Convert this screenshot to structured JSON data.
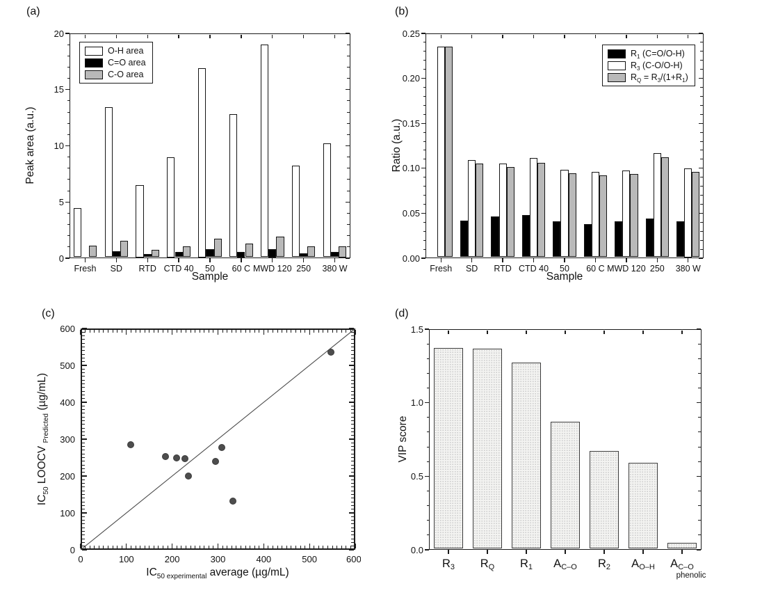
{
  "page": {
    "background": "#ffffff"
  },
  "colors": {
    "axis": "#1a1a1a",
    "bar_white": "#ffffff",
    "bar_black": "#000000",
    "bar_gray": "#b9b9b9",
    "scatter_dot": "#4d4d4d",
    "pattern_bar_fill": "#f3f3f1"
  },
  "chart_data": [
    {
      "id": "a",
      "type": "bar",
      "panel_label": "(a)",
      "xlabel": "Sample",
      "ylabel": "Peak area (a.u.)",
      "ylim": [
        0,
        20
      ],
      "yticks": {
        "values": [
          0,
          5,
          10,
          15,
          20
        ],
        "labels": [
          "0",
          "5",
          "10",
          "15",
          "20"
        ]
      },
      "y_minor_step": 1,
      "grid": false,
      "legend_position": "top-left",
      "categories": [
        "Fresh",
        "SD",
        "RTD",
        "CTD 40",
        "50",
        "60 C",
        "MWD 120",
        "250",
        "380 W"
      ],
      "series": [
        {
          "name": "O-H area",
          "fill": "#ffffff",
          "values": [
            4.4,
            13.45,
            6.5,
            9.0,
            17.0,
            12.85,
            19.1,
            8.2,
            10.2
          ]
        },
        {
          "name": "C=O area",
          "fill": "#000000",
          "values": [
            0,
            0.55,
            0.3,
            0.45,
            0.7,
            0.5,
            0.75,
            0.35,
            0.45
          ]
        },
        {
          "name": "C-O area",
          "fill": "#b9b9b9",
          "values": [
            1.05,
            1.45,
            0.65,
            0.95,
            1.65,
            1.2,
            1.85,
            0.95,
            1.0
          ]
        }
      ],
      "legend": [
        {
          "fill": "#ffffff",
          "segments": [
            {
              "t": "O-H area"
            }
          ]
        },
        {
          "fill": "#000000",
          "segments": [
            {
              "t": "C=O area"
            }
          ]
        },
        {
          "fill": "#b9b9b9",
          "segments": [
            {
              "t": "C-O area"
            }
          ]
        }
      ]
    },
    {
      "id": "b",
      "type": "bar",
      "panel_label": "(b)",
      "xlabel": "Sample",
      "ylabel": "Ratio (a.u.)",
      "ylim": [
        0,
        0.25
      ],
      "yticks": {
        "values": [
          0,
          0.05,
          0.1,
          0.15,
          0.2,
          0.25
        ],
        "labels": [
          "0.00",
          "0.05",
          "0.10",
          "0.15",
          "0.20",
          "0.25"
        ]
      },
      "y_minor_step": 0.01,
      "grid": false,
      "legend_position": "top-right",
      "categories": [
        "Fresh",
        "SD",
        "RTD",
        "CTD 40",
        "50",
        "60 C",
        "MWD 120",
        "250",
        "380 W"
      ],
      "series": [
        {
          "name": "R1 (C=O/O-H)",
          "fill": "#000000",
          "values": [
            0,
            0.041,
            0.046,
            0.047,
            0.04,
            0.037,
            0.04,
            0.043,
            0.04
          ]
        },
        {
          "name": "R3 (C-O/O-H)",
          "fill": "#ffffff",
          "values": [
            0.236,
            0.109,
            0.105,
            0.111,
            0.098,
            0.096,
            0.097,
            0.117,
            0.1
          ]
        },
        {
          "name": "RQ = R3/(1+R1)",
          "fill": "#b9b9b9",
          "values": [
            0.236,
            0.105,
            0.101,
            0.106,
            0.094,
            0.092,
            0.093,
            0.112,
            0.096
          ]
        }
      ],
      "legend": [
        {
          "fill": "#000000",
          "segments": [
            {
              "t": "R"
            },
            {
              "s": "1"
            },
            {
              "t": " (C=O/O-H)"
            }
          ]
        },
        {
          "fill": "#ffffff",
          "segments": [
            {
              "t": "R"
            },
            {
              "s": "3"
            },
            {
              "t": " (C-O/O-H)"
            }
          ]
        },
        {
          "fill": "#b9b9b9",
          "segments": [
            {
              "t": "R"
            },
            {
              "s": "Q"
            },
            {
              "t": " = R"
            },
            {
              "s": "3"
            },
            {
              "t": "/(1+R"
            },
            {
              "s": "1"
            },
            {
              "t": ")"
            }
          ]
        }
      ]
    },
    {
      "id": "c",
      "type": "scatter",
      "panel_label": "(c)",
      "xlabel_segments": [
        {
          "t": "IC"
        },
        {
          "s": "50 experimental"
        },
        {
          "t": " average (µg/mL)"
        }
      ],
      "ylabel_segments": [
        {
          "t": "IC"
        },
        {
          "s": "50"
        },
        {
          "t": " LOOCV "
        },
        {
          "s": "Predicted"
        },
        {
          "t": " (µg/mL)"
        }
      ],
      "xlim": [
        0,
        600
      ],
      "ylim": [
        0,
        600
      ],
      "xticks": {
        "values": [
          0,
          100,
          200,
          300,
          400,
          500,
          600
        ],
        "labels": [
          "0",
          "100",
          "200",
          "300",
          "400",
          "500",
          "600"
        ]
      },
      "yticks": {
        "values": [
          0,
          100,
          200,
          300,
          400,
          500,
          600
        ],
        "labels": [
          "0",
          "100",
          "200",
          "300",
          "400",
          "500",
          "600"
        ]
      },
      "x_minor_step": 10,
      "y_minor_step": 10,
      "grid": false,
      "identity_line": {
        "from": [
          0,
          0
        ],
        "to": [
          600,
          600
        ]
      },
      "points": [
        [
          109,
          284
        ],
        [
          185,
          252
        ],
        [
          210,
          250
        ],
        [
          228,
          247
        ],
        [
          236,
          200
        ],
        [
          294,
          240
        ],
        [
          309,
          278
        ],
        [
          333,
          133
        ],
        [
          547,
          535
        ]
      ]
    },
    {
      "id": "d",
      "type": "bar",
      "panel_label": "(d)",
      "xlabel": "",
      "ylabel": "VIP score",
      "ylim": [
        0,
        1.5
      ],
      "yticks": {
        "values": [
          0,
          0.5,
          1.0,
          1.5
        ],
        "labels": [
          "0.0",
          "0.5",
          "1.0",
          "1.5"
        ]
      },
      "y_minor_step": 0.1,
      "grid": false,
      "pattern": true,
      "categories": [
        {
          "segments": [
            {
              "t": "R"
            },
            {
              "s": "3"
            }
          ]
        },
        {
          "segments": [
            {
              "t": "R"
            },
            {
              "s": "Q"
            }
          ]
        },
        {
          "segments": [
            {
              "t": "R"
            },
            {
              "s": "1"
            }
          ]
        },
        {
          "segments": [
            {
              "t": "A"
            },
            {
              "s": "C–O"
            }
          ]
        },
        {
          "segments": [
            {
              "t": "R"
            },
            {
              "s": "2"
            }
          ]
        },
        {
          "segments": [
            {
              "t": "A"
            },
            {
              "s": "O–H"
            }
          ]
        },
        {
          "segments": [
            {
              "t": "A"
            },
            {
              "s": "C–O"
            }
          ],
          "line2": "phenolic"
        }
      ],
      "values": [
        1.38,
        1.375,
        1.28,
        0.87,
        0.67,
        0.59,
        0.04
      ]
    }
  ]
}
